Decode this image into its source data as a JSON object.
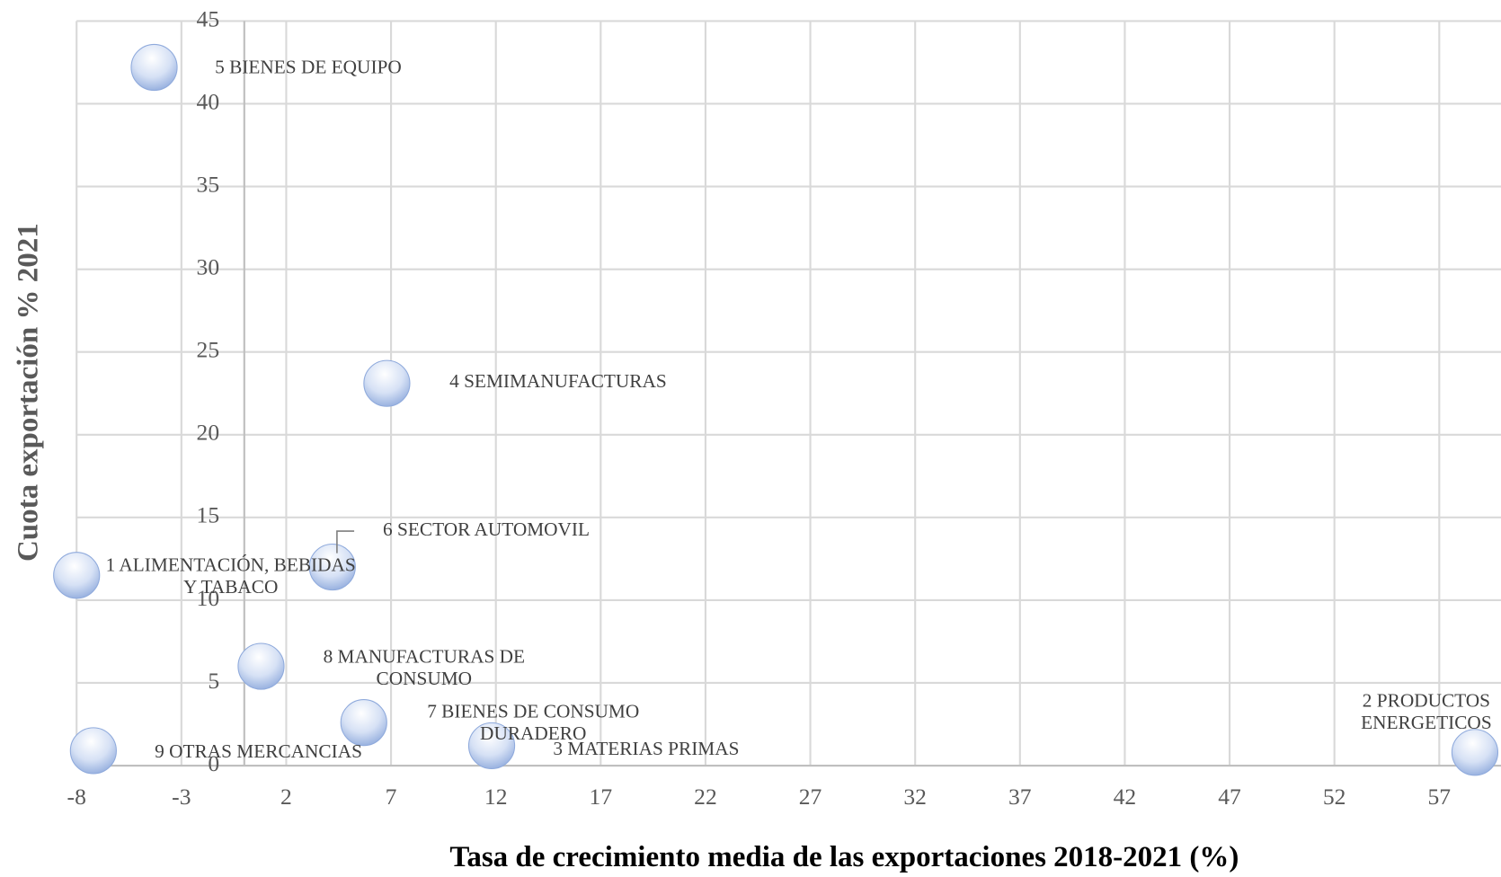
{
  "chart_data": {
    "type": "bubble",
    "x_label": "Tasa de crecimiento media de las exportaciones 2018-2021 (%)",
    "y_label": "Cuota exportación % 2021",
    "labels": [
      [
        "5 BIENES DE EQUIPO"
      ],
      [
        "4 SEMIMANUFACTURAS"
      ],
      [
        "6 SECTOR AUTOMOVIL"
      ],
      [
        "1 ALIMENTACIÓN, BEBIDAS",
        "Y TABACO"
      ],
      [
        "8 MANUFACTURAS DE",
        "CONSUMO"
      ],
      [
        "7 BIENES DE CONSUMO",
        "DURADERO"
      ],
      [
        "3 MATERIAS PRIMAS"
      ],
      [
        "9 OTRAS MERCANCIAS"
      ],
      [
        "2 PRODUCTOS",
        "ENERGETICOS"
      ]
    ],
    "x": [
      -4.3,
      6.8,
      4.2,
      -8.0,
      0.8,
      5.7,
      11.8,
      -7.2,
      58.7
    ],
    "values": [
      42.2,
      23.1,
      12.0,
      11.5,
      6.0,
      2.6,
      1.2,
      0.9,
      0.8
    ],
    "color": "#8faadc",
    "xlim": [
      -8,
      60
    ],
    "xticks": [
      -8,
      -3,
      2,
      7,
      12,
      17,
      22,
      27,
      32,
      37,
      42,
      47,
      52,
      57
    ],
    "ylim": [
      0,
      45
    ],
    "yticks": [
      0,
      5,
      10,
      15,
      20,
      25,
      30,
      35,
      40,
      45
    ],
    "grid": true
  }
}
